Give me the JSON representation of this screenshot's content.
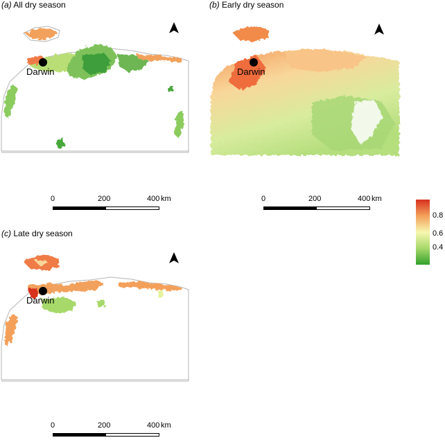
{
  "panels": [
    {
      "id": "a",
      "title_letter": "(a)",
      "title_text": " All dry season",
      "city": "Darwin",
      "scale_ticks": [
        "0",
        "200",
        "400"
      ],
      "scale_unit": "km"
    },
    {
      "id": "b",
      "title_letter": "(b)",
      "title_text": " Early dry season",
      "city": "Darwin",
      "scale_ticks": [
        "0",
        "200",
        "400"
      ],
      "scale_unit": "km"
    },
    {
      "id": "c",
      "title_letter": "(c)",
      "title_text": " Late dry season",
      "city": "Darwin",
      "scale_ticks": [
        "0",
        "200",
        "400"
      ],
      "scale_unit": "km"
    }
  ],
  "legend": {
    "labels": [
      "0.8",
      "0.6",
      "0.4"
    ],
    "colors": {
      "high": "#d7301f",
      "upper": "#f4a05a",
      "mid": "#f7f7b0",
      "lower": "#a6d96a",
      "low": "#33a02c"
    }
  },
  "icons": {
    "north_arrow": "north-arrow-icon",
    "city_marker": "city-dot-icon"
  }
}
